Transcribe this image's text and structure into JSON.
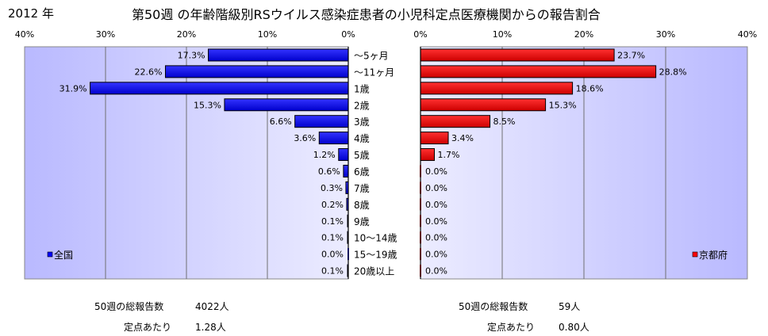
{
  "header": {
    "year": "2012 年",
    "title": "第50週 の年齢階級別RSウイルス感染症患者の小児科定点医療機関からの報告割合"
  },
  "chart_data": [
    {
      "type": "bar",
      "orientation": "horizontal",
      "direction": "reversed",
      "legend": "全国",
      "legend_position": "bottom-left",
      "xlim": [
        0,
        40
      ],
      "x_ticks": [
        "40%",
        "30%",
        "20%",
        "10%",
        "0%"
      ],
      "grid": true,
      "color": "#0000ff",
      "plot_background": "gradient-lavender",
      "categories": [
        "〜5ヶ月",
        "〜11ヶ月",
        "1歳",
        "2歳",
        "3歳",
        "4歳",
        "5歳",
        "6歳",
        "7歳",
        "8歳",
        "9歳",
        "10〜14歳",
        "15〜19歳",
        "20歳以上"
      ],
      "values": [
        17.3,
        22.6,
        31.9,
        15.3,
        6.6,
        3.6,
        1.2,
        0.6,
        0.3,
        0.2,
        0.1,
        0.1,
        0.0,
        0.1
      ],
      "value_labels": [
        "17.3%",
        "22.6%",
        "31.9%",
        "15.3%",
        "6.6%",
        "3.6%",
        "1.2%",
        "0.6%",
        "0.3%",
        "0.2%",
        "0.1%",
        "0.1%",
        "0.0%",
        "0.1%"
      ]
    },
    {
      "type": "bar",
      "orientation": "horizontal",
      "legend": "京都府",
      "legend_position": "bottom-right",
      "xlim": [
        0,
        40
      ],
      "x_ticks": [
        "0%",
        "10%",
        "20%",
        "30%",
        "40%"
      ],
      "grid": true,
      "color": "#ff0000",
      "plot_background": "gradient-lavender",
      "categories": [
        "〜5ヶ月",
        "〜11ヶ月",
        "1歳",
        "2歳",
        "3歳",
        "4歳",
        "5歳",
        "6歳",
        "7歳",
        "8歳",
        "9歳",
        "10〜14歳",
        "15〜19歳",
        "20歳以上"
      ],
      "values": [
        23.7,
        28.8,
        18.6,
        15.3,
        8.5,
        3.4,
        1.7,
        0.0,
        0.0,
        0.0,
        0.0,
        0.0,
        0.0,
        0.0
      ],
      "value_labels": [
        "23.7%",
        "28.8%",
        "18.6%",
        "15.3%",
        "8.5%",
        "3.4%",
        "1.7%",
        "0.0%",
        "0.0%",
        "0.0%",
        "0.0%",
        "0.0%",
        "0.0%",
        "0.0%"
      ]
    }
  ],
  "stats": {
    "national": {
      "total_label": "50週の総報告数",
      "total_value": "4022人",
      "per_site_label": "定点あたり",
      "per_site_value": "1.28人"
    },
    "kyoto": {
      "total_label": "50週の総報告数",
      "total_value": "59人",
      "per_site_label": "定点あたり",
      "per_site_value": "0.80人"
    }
  }
}
